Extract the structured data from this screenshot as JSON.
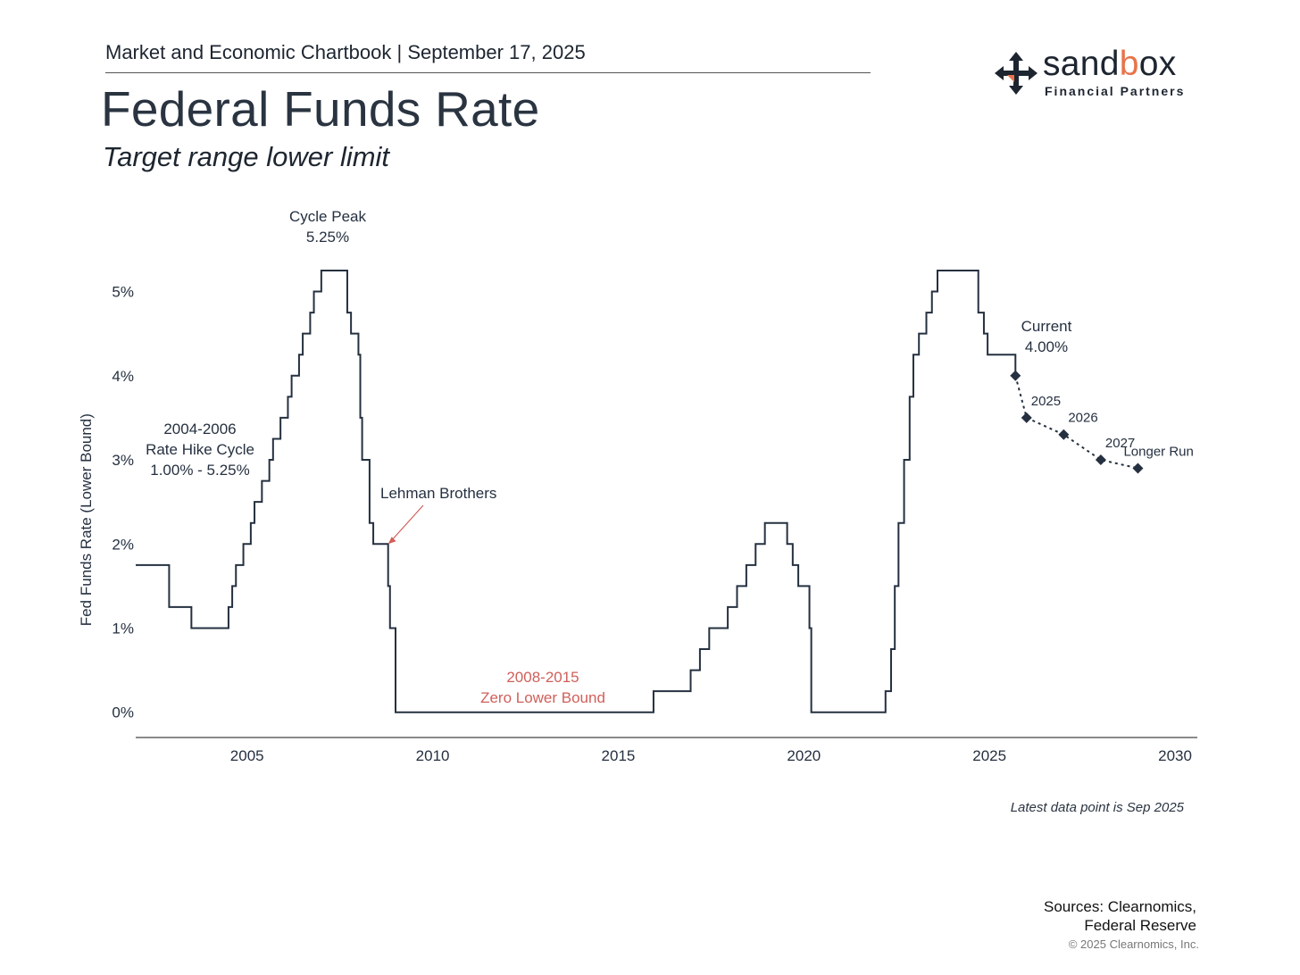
{
  "header": {
    "chartbook": "Market and Economic Chartbook | September 17, 2025",
    "title": "Federal Funds Rate",
    "subtitle": "Target range lower limit"
  },
  "logo": {
    "word_dark": "sand",
    "word_accent": "b",
    "word_dark2": "ox",
    "tagline": "Financial Partners",
    "icon": "move-arrows-icon",
    "accent_color": "#e8734a"
  },
  "footer": {
    "latest_note": "Latest data point is Sep 2025",
    "sources_line1": "Sources: Clearnomics,",
    "sources_line2": "Federal Reserve",
    "copyright": "© 2025 Clearnomics, Inc."
  },
  "chart_data": {
    "type": "line",
    "ylabel": "Fed Funds Rate (Lower Bound)",
    "xlabel": "",
    "xlim": [
      2002.0,
      2030.6
    ],
    "ylim": [
      -0.3,
      5.6
    ],
    "x_ticks": [
      2005,
      2010,
      2015,
      2020,
      2025,
      2030
    ],
    "y_ticks": [
      0,
      1,
      2,
      3,
      4,
      5
    ],
    "y_tick_labels": [
      "0%",
      "1%",
      "2%",
      "3%",
      "4%",
      "5%"
    ],
    "grid": false,
    "colors": {
      "line": "#253040",
      "annotation_red": "#d0605a",
      "text": "#253040"
    },
    "series": [
      {
        "style": "step",
        "points": [
          [
            2002.0,
            1.75
          ],
          [
            2002.9,
            1.25
          ],
          [
            2003.5,
            1.0
          ],
          [
            2004.5,
            1.25
          ],
          [
            2004.6,
            1.5
          ],
          [
            2004.7,
            1.75
          ],
          [
            2004.9,
            2.0
          ],
          [
            2005.1,
            2.25
          ],
          [
            2005.2,
            2.5
          ],
          [
            2005.4,
            2.75
          ],
          [
            2005.6,
            3.0
          ],
          [
            2005.7,
            3.25
          ],
          [
            2005.9,
            3.5
          ],
          [
            2006.1,
            3.75
          ],
          [
            2006.2,
            4.0
          ],
          [
            2006.4,
            4.25
          ],
          [
            2006.5,
            4.5
          ],
          [
            2006.7,
            4.75
          ],
          [
            2006.8,
            5.0
          ],
          [
            2007.0,
            5.25
          ],
          [
            2007.7,
            4.75
          ],
          [
            2007.8,
            4.5
          ],
          [
            2008.0,
            4.25
          ],
          [
            2008.05,
            3.5
          ],
          [
            2008.1,
            3.0
          ],
          [
            2008.3,
            2.25
          ],
          [
            2008.4,
            2.0
          ],
          [
            2008.8,
            1.5
          ],
          [
            2008.85,
            1.0
          ],
          [
            2009.0,
            0.0
          ],
          [
            2015.95,
            0.25
          ],
          [
            2016.95,
            0.5
          ],
          [
            2017.2,
            0.75
          ],
          [
            2017.45,
            1.0
          ],
          [
            2017.95,
            1.25
          ],
          [
            2018.2,
            1.5
          ],
          [
            2018.45,
            1.75
          ],
          [
            2018.7,
            2.0
          ],
          [
            2018.95,
            2.25
          ],
          [
            2019.55,
            2.0
          ],
          [
            2019.7,
            1.75
          ],
          [
            2019.85,
            1.5
          ],
          [
            2020.15,
            1.0
          ],
          [
            2020.2,
            0.0
          ],
          [
            2022.2,
            0.25
          ],
          [
            2022.35,
            0.75
          ],
          [
            2022.45,
            1.5
          ],
          [
            2022.55,
            2.25
          ],
          [
            2022.7,
            3.0
          ],
          [
            2022.85,
            3.75
          ],
          [
            2022.95,
            4.25
          ],
          [
            2023.1,
            4.5
          ],
          [
            2023.3,
            4.75
          ],
          [
            2023.45,
            5.0
          ],
          [
            2023.6,
            5.25
          ],
          [
            2024.7,
            4.75
          ],
          [
            2024.85,
            4.5
          ],
          [
            2024.95,
            4.25
          ],
          [
            2025.7,
            4.0
          ]
        ]
      },
      {
        "style": "projection",
        "points": [
          [
            2025.7,
            4.0
          ],
          [
            2026.0,
            3.5
          ],
          [
            2027.0,
            3.3
          ],
          [
            2028.0,
            3.0
          ],
          [
            2029.0,
            2.9
          ]
        ],
        "labels": [
          "",
          "2025",
          "2026",
          "2027",
          "Longer Run"
        ]
      }
    ],
    "annotations": [
      {
        "id": "cycle-peak",
        "lines": [
          "Cycle Peak",
          "5.25%"
        ],
        "color": "text"
      },
      {
        "id": "hike-cycle",
        "lines": [
          "2004-2006",
          "Rate Hike Cycle",
          "1.00% - 5.25%"
        ],
        "color": "text"
      },
      {
        "id": "lehman",
        "lines": [
          "Lehman Brothers"
        ],
        "color": "text",
        "arrow_to": [
          2008.8,
          2.0
        ]
      },
      {
        "id": "zlb",
        "lines": [
          "2008-2015",
          "Zero Lower Bound"
        ],
        "color": "annotation_red"
      },
      {
        "id": "current",
        "lines": [
          "Current",
          "4.00%"
        ],
        "color": "text"
      }
    ]
  }
}
